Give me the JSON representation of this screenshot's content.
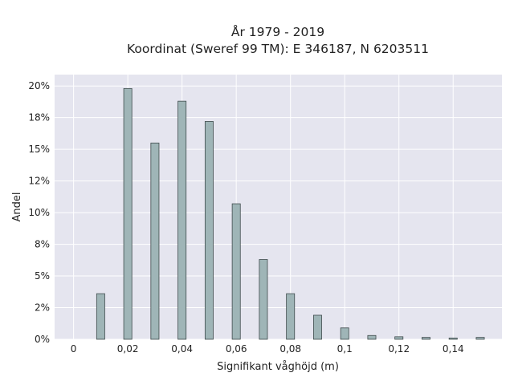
{
  "chart_data": {
    "type": "bar",
    "title": "År 1979 - 2019",
    "subtitle": "Koordinat (Sweref 99 TM): E 346187, N 6203511",
    "xlabel": "Signifikant våghöjd (m)",
    "ylabel": "Andel",
    "xlim": [
      -0.007,
      0.158
    ],
    "ylim": [
      0,
      0.209
    ],
    "x_ticks": [
      0,
      0.02,
      0.04,
      0.06,
      0.08,
      0.1,
      0.12,
      0.14
    ],
    "x_tick_labels": [
      "0",
      "0,02",
      "0,04",
      "0,06",
      "0,08",
      "0,1",
      "0,12",
      "0,14"
    ],
    "y_ticks": [
      0,
      0.025,
      0.05,
      0.075,
      0.1,
      0.125,
      0.15,
      0.175,
      0.2
    ],
    "y_tick_labels": [
      "0%",
      "2%",
      "5%",
      "8%",
      "10%",
      "12%",
      "15%",
      "18%",
      "20%"
    ],
    "bar_width": 0.003,
    "x": [
      0,
      0.01,
      0.02,
      0.03,
      0.04,
      0.05,
      0.06,
      0.07,
      0.08,
      0.09,
      0.1,
      0.11,
      0.12,
      0.13,
      0.14,
      0.15
    ],
    "values": [
      0,
      0.036,
      0.198,
      0.155,
      0.188,
      0.172,
      0.107,
      0.063,
      0.036,
      0.019,
      0.009,
      0.003,
      0.002,
      0.0015,
      0.001,
      0.0015
    ],
    "grid": true,
    "colors": {
      "plot_bg": "#e5e5ef",
      "grid": "#ffffff",
      "bar_fill": "#9fb5b7",
      "bar_stroke": "#3f4b4c"
    }
  }
}
